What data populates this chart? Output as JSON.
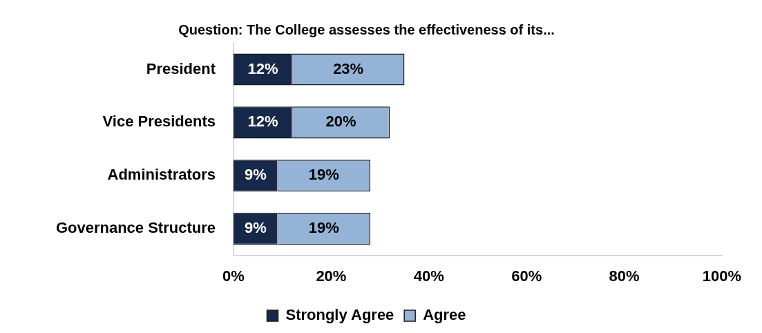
{
  "chart_data": {
    "type": "bar",
    "orientation": "horizontal",
    "stacked": true,
    "title": "Question: The College assesses the effectiveness of its...",
    "categories": [
      "President",
      "Vice Presidents",
      "Administrators",
      "Governance Structure"
    ],
    "series": [
      {
        "name": "Strongly Agree",
        "color": "#17294a",
        "values": [
          12,
          12,
          9,
          9
        ],
        "value_labels": [
          "12%",
          "12%",
          "9%",
          "9%"
        ]
      },
      {
        "name": "Agree",
        "color": "#95b3d7",
        "values": [
          23,
          20,
          19,
          19
        ],
        "value_labels": [
          "23%",
          "20%",
          "19%",
          "19%"
        ]
      }
    ],
    "xlim": [
      0,
      100
    ],
    "xticks": [
      {
        "value": 0,
        "label": "0%"
      },
      {
        "value": 20,
        "label": "20%"
      },
      {
        "value": 40,
        "label": "40%"
      },
      {
        "value": 60,
        "label": "60%"
      },
      {
        "value": 80,
        "label": "80%"
      },
      {
        "value": 100,
        "label": "100%"
      }
    ],
    "grid": false,
    "legend": "bottom"
  }
}
